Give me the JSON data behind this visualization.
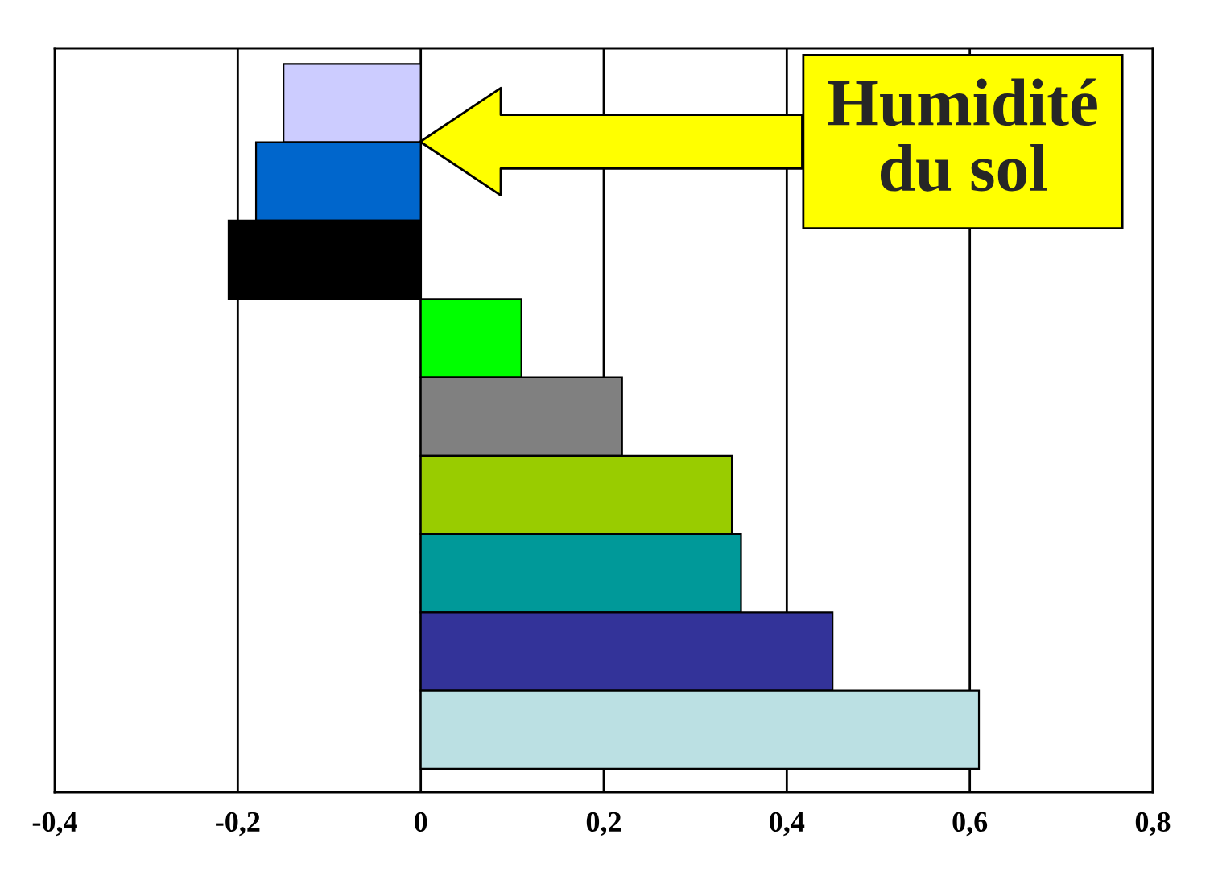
{
  "chart_data": {
    "type": "bar",
    "orientation": "horizontal",
    "categories": [
      null,
      null,
      null,
      null,
      null,
      null,
      null,
      null,
      null
    ],
    "values": [
      -0.15,
      -0.18,
      -0.21,
      0.11,
      0.22,
      0.34,
      0.35,
      0.45,
      0.61
    ],
    "colors": [
      "#ccccff",
      "#0066cc",
      "#000000",
      "#00ff00",
      "#808080",
      "#99cc00",
      "#009999",
      "#333399",
      "#bbe0e3"
    ],
    "xlim": [
      -0.4,
      0.8
    ],
    "xticks": [
      {
        "value": -0.4,
        "label": "-0,4"
      },
      {
        "value": -0.2,
        "label": "-0,2"
      },
      {
        "value": 0,
        "label": "0"
      },
      {
        "value": 0.2,
        "label": "0,2"
      },
      {
        "value": 0.4,
        "label": "0,4"
      },
      {
        "value": 0.6,
        "label": "0,6"
      },
      {
        "value": 0.8,
        "label": "0,8"
      }
    ],
    "grid": "x",
    "annotations": [
      "Humidité\ndu sol"
    ]
  }
}
